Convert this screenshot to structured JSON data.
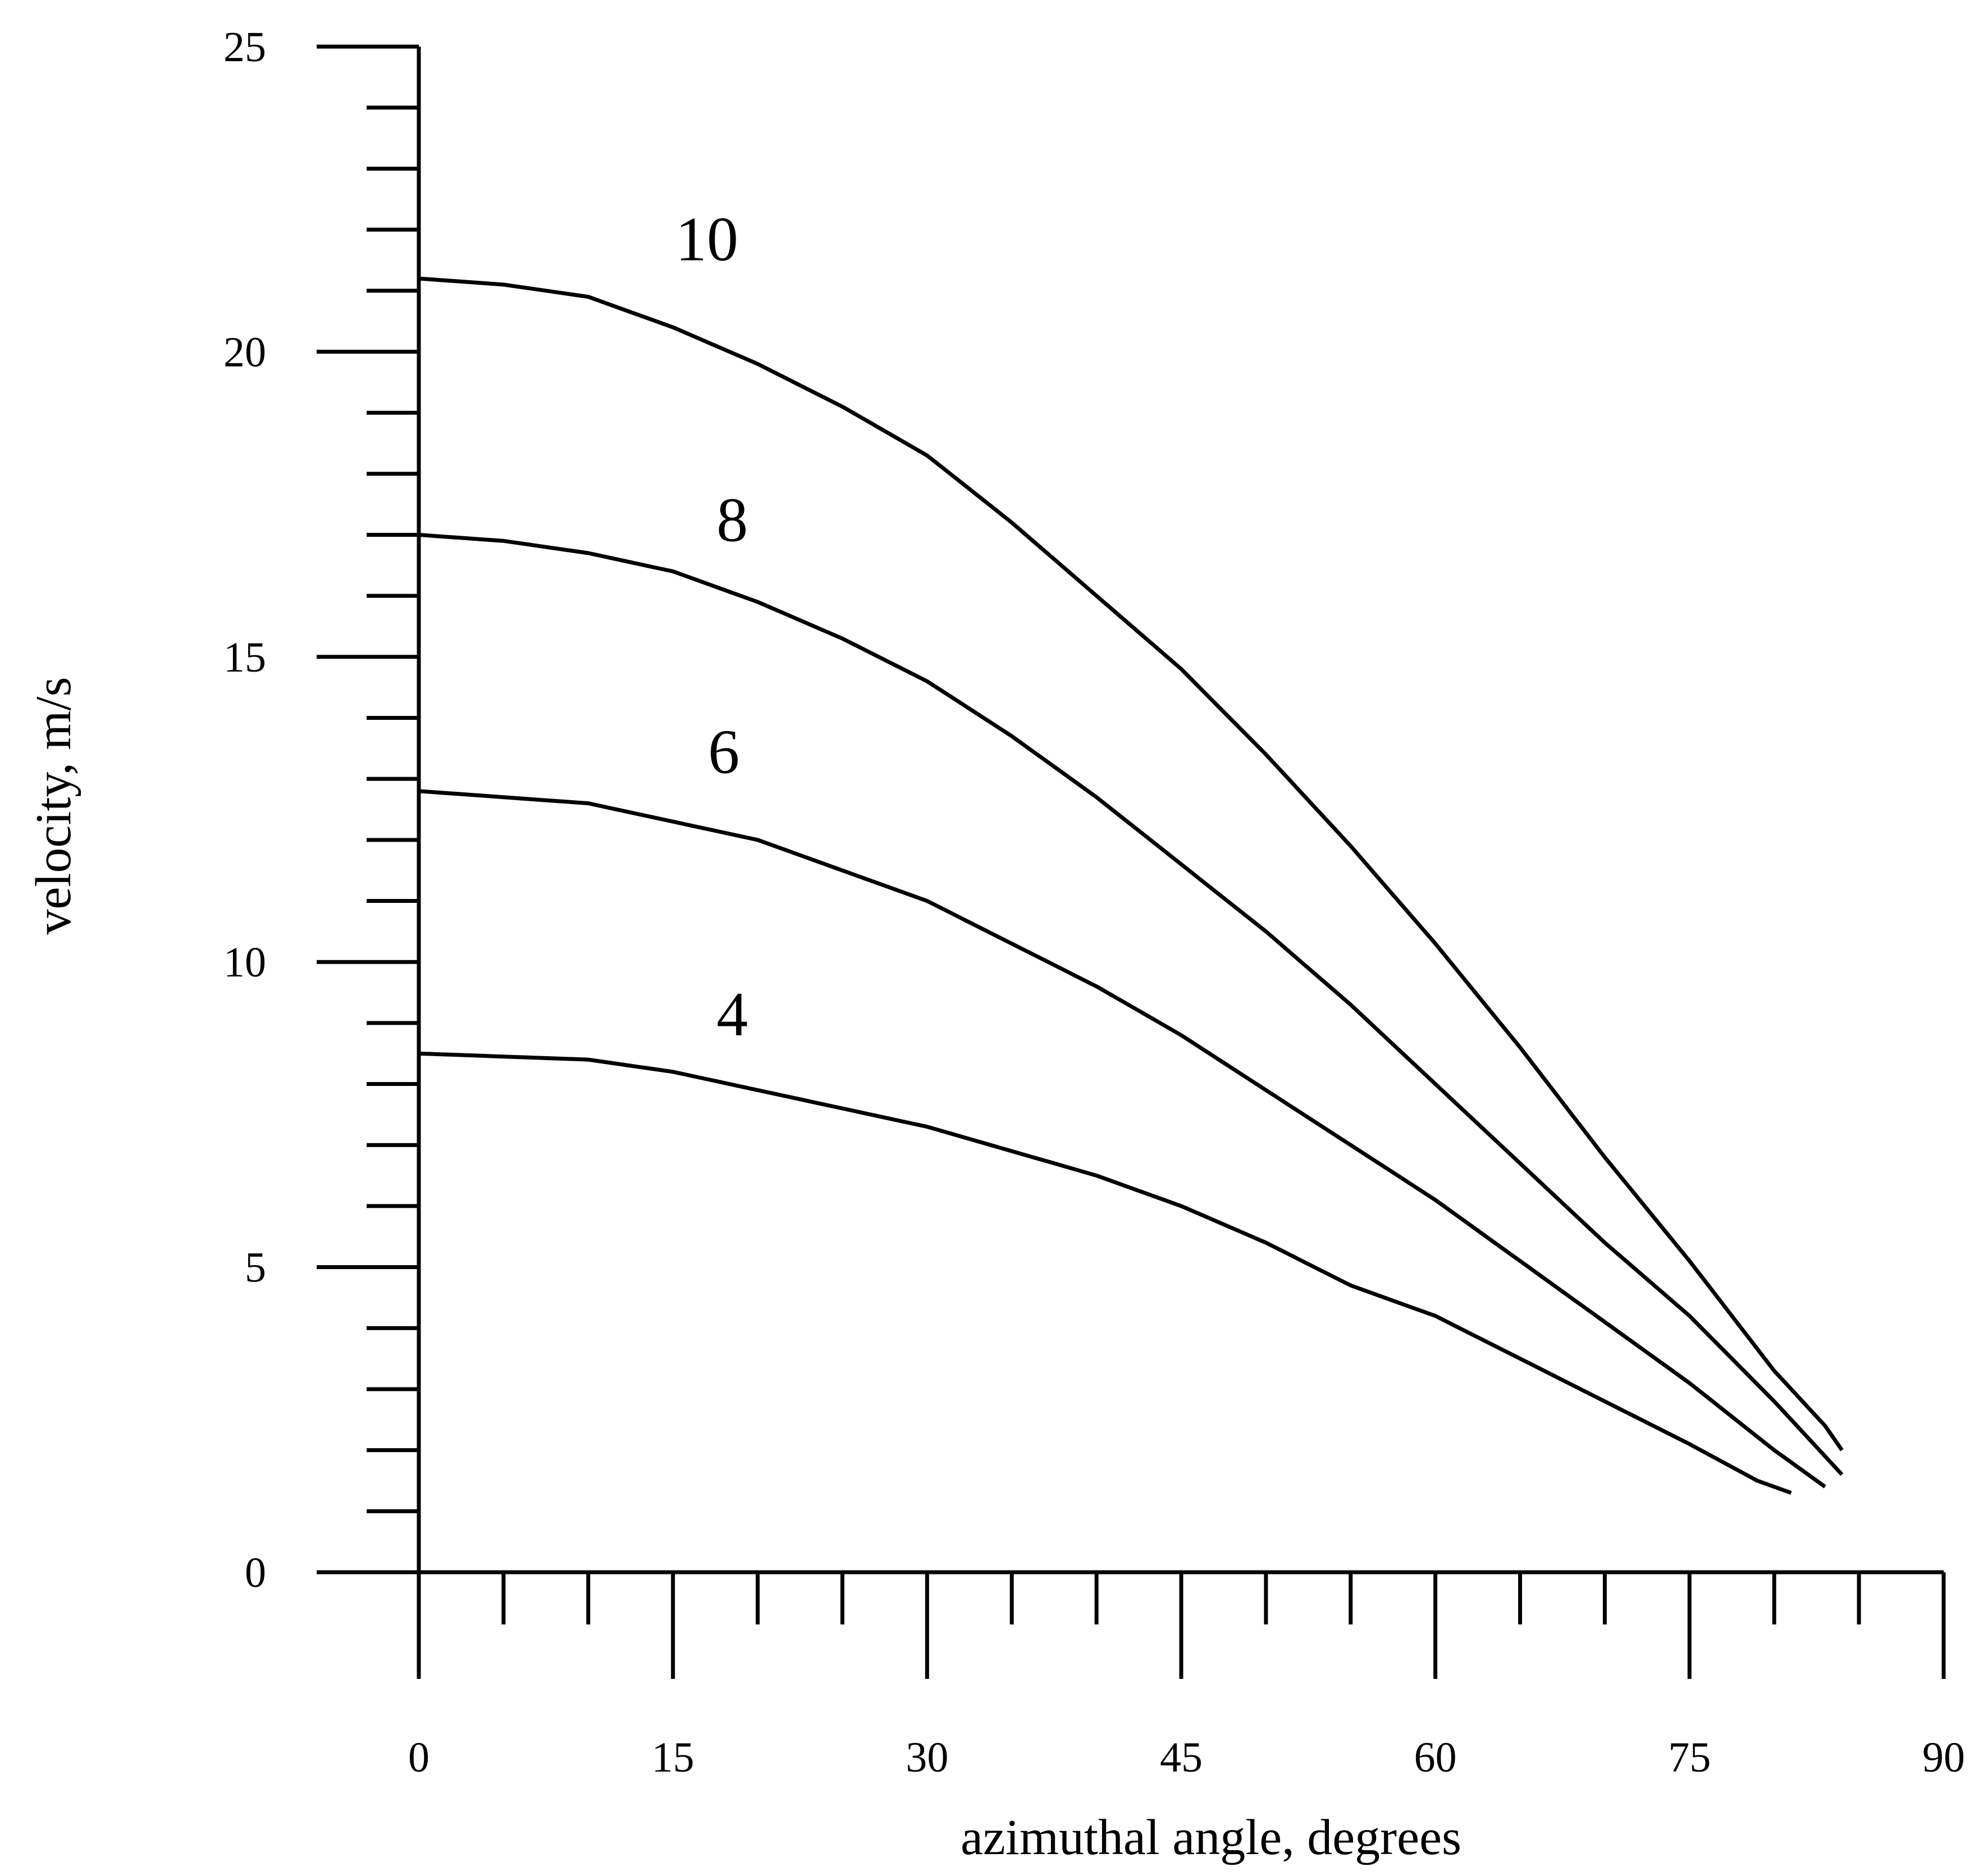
{
  "chart_data": {
    "type": "line",
    "title": "",
    "xlabel": "azimuthal angle, degrees",
    "ylabel": "velocity, m/s",
    "xlim": [
      0,
      90
    ],
    "ylim": [
      0,
      25
    ],
    "x_ticks": [
      "0",
      "15",
      "30",
      "45",
      "60",
      "75",
      "90"
    ],
    "y_ticks": [
      "0",
      "5",
      "10",
      "15",
      "20",
      "25"
    ],
    "grid": false,
    "legend": "none (curves labeled directly)",
    "series": [
      {
        "name": "10",
        "x": [
          0,
          5,
          10,
          15,
          20,
          25,
          30,
          35,
          40,
          45,
          50,
          55,
          60,
          65,
          70,
          75,
          80,
          83,
          84
        ],
        "y": [
          21.2,
          21.1,
          20.9,
          20.4,
          19.8,
          19.1,
          18.3,
          17.2,
          16.0,
          14.8,
          13.4,
          11.9,
          10.3,
          8.6,
          6.8,
          5.1,
          3.3,
          2.4,
          2.0
        ]
      },
      {
        "name": "8",
        "x": [
          0,
          5,
          10,
          15,
          20,
          25,
          30,
          35,
          40,
          45,
          50,
          55,
          60,
          65,
          70,
          75,
          80,
          84
        ],
        "y": [
          17.0,
          16.9,
          16.7,
          16.4,
          15.9,
          15.3,
          14.6,
          13.7,
          12.7,
          11.6,
          10.5,
          9.3,
          8.0,
          6.7,
          5.4,
          4.2,
          2.8,
          1.6
        ]
      },
      {
        "name": "6",
        "x": [
          0,
          5,
          10,
          15,
          20,
          25,
          30,
          35,
          40,
          45,
          50,
          55,
          60,
          65,
          70,
          75,
          80,
          83
        ],
        "y": [
          12.8,
          12.7,
          12.6,
          12.3,
          12.0,
          11.5,
          11.0,
          10.3,
          9.6,
          8.8,
          7.9,
          7.0,
          6.1,
          5.1,
          4.1,
          3.1,
          2.0,
          1.4
        ]
      },
      {
        "name": "4",
        "x": [
          0,
          5,
          10,
          15,
          20,
          25,
          30,
          35,
          40,
          45,
          50,
          55,
          60,
          65,
          70,
          75,
          79,
          81
        ],
        "y": [
          8.5,
          8.45,
          8.4,
          8.2,
          7.9,
          7.6,
          7.3,
          6.9,
          6.5,
          6.0,
          5.4,
          4.7,
          4.2,
          3.5,
          2.8,
          2.1,
          1.5,
          1.3
        ]
      }
    ]
  }
}
